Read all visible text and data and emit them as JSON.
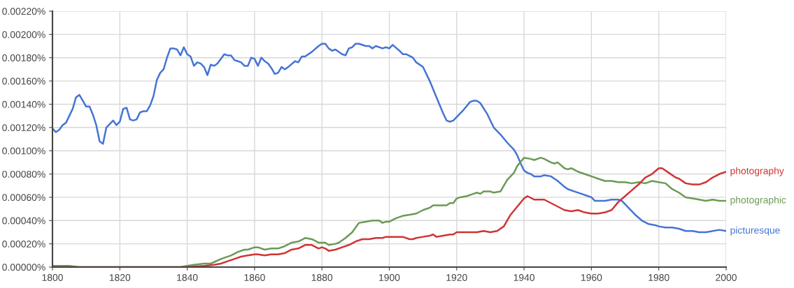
{
  "chart_data": {
    "type": "line",
    "xlim": [
      1800,
      2000
    ],
    "xticks": [
      1800,
      1820,
      1840,
      1860,
      1880,
      1900,
      1920,
      1940,
      1960,
      1980,
      2000
    ],
    "ylim": [
      0,
      0.0022
    ],
    "yticks": [
      {
        "value": 0,
        "label": "0.00000%"
      },
      {
        "value": 0.0002,
        "label": "0.00020%"
      },
      {
        "value": 0.0004,
        "label": "0.00040%"
      },
      {
        "value": 0.0006,
        "label": "0.00060%"
      },
      {
        "value": 0.0008,
        "label": "0.00080%"
      },
      {
        "value": 0.001,
        "label": "0.00100%"
      },
      {
        "value": 0.0012,
        "label": "0.00120%"
      },
      {
        "value": 0.0014,
        "label": "0.00140%"
      },
      {
        "value": 0.0016,
        "label": "0.00160%"
      },
      {
        "value": 0.0018,
        "label": "0.00180%"
      },
      {
        "value": 0.002,
        "label": "0.00200%"
      },
      {
        "value": 0.0022,
        "label": "0.00220%"
      }
    ],
    "grid": true,
    "legend": false,
    "marker": "none",
    "line_style": "solid",
    "series": [
      {
        "name": "picturesque",
        "color": "#4574d4",
        "x": [
          1800,
          1801,
          1802,
          1803,
          1804,
          1805,
          1806,
          1807,
          1808,
          1809,
          1810,
          1811,
          1812,
          1813,
          1814,
          1815,
          1816,
          1817,
          1818,
          1819,
          1820,
          1821,
          1822,
          1823,
          1824,
          1825,
          1826,
          1827,
          1828,
          1829,
          1830,
          1831,
          1832,
          1833,
          1834,
          1835,
          1836,
          1837,
          1838,
          1839,
          1840,
          1841,
          1842,
          1843,
          1844,
          1845,
          1846,
          1847,
          1848,
          1849,
          1850,
          1851,
          1852,
          1853,
          1854,
          1855,
          1856,
          1857,
          1858,
          1859,
          1860,
          1861,
          1862,
          1863,
          1864,
          1865,
          1866,
          1867,
          1868,
          1869,
          1870,
          1872,
          1873,
          1874,
          1875,
          1877,
          1879,
          1880,
          1881,
          1882,
          1883,
          1884,
          1886,
          1887,
          1888,
          1889,
          1890,
          1891,
          1893,
          1894,
          1895,
          1896,
          1898,
          1899,
          1900,
          1901,
          1903,
          1904,
          1905,
          1907,
          1908,
          1910,
          1912,
          1914,
          1916,
          1917,
          1918,
          1919,
          1920,
          1922,
          1924,
          1925,
          1926,
          1927,
          1929,
          1931,
          1933,
          1935,
          1937,
          1938,
          1939,
          1940,
          1941,
          1942,
          1943,
          1945,
          1946,
          1948,
          1950,
          1952,
          1953,
          1955,
          1957,
          1959,
          1960,
          1961,
          1962,
          1964,
          1966,
          1968,
          1969,
          1971,
          1973,
          1975,
          1977,
          1979,
          1980,
          1982,
          1984,
          1986,
          1988,
          1990,
          1992,
          1994,
          1996,
          1998,
          2000
        ],
        "values": [
          0.00119,
          0.00116,
          0.00118,
          0.00122,
          0.00124,
          0.0013,
          0.00136,
          0.00146,
          0.00148,
          0.00143,
          0.00138,
          0.00138,
          0.00131,
          0.00122,
          0.00108,
          0.00106,
          0.0012,
          0.00123,
          0.00126,
          0.00122,
          0.00125,
          0.00136,
          0.00137,
          0.00127,
          0.00126,
          0.00127,
          0.00133,
          0.00134,
          0.00134,
          0.00139,
          0.00147,
          0.00161,
          0.00167,
          0.0017,
          0.0018,
          0.00188,
          0.00188,
          0.00187,
          0.00182,
          0.00189,
          0.00183,
          0.00181,
          0.00173,
          0.00176,
          0.00175,
          0.00172,
          0.00165,
          0.00174,
          0.00173,
          0.00175,
          0.00179,
          0.00183,
          0.00182,
          0.00182,
          0.00178,
          0.00177,
          0.00176,
          0.00173,
          0.00173,
          0.0018,
          0.00179,
          0.00173,
          0.0018,
          0.00177,
          0.00175,
          0.00171,
          0.00166,
          0.00167,
          0.00172,
          0.0017,
          0.00172,
          0.00177,
          0.00176,
          0.00181,
          0.00181,
          0.00185,
          0.0019,
          0.00192,
          0.00192,
          0.00188,
          0.00186,
          0.00187,
          0.00183,
          0.00182,
          0.00188,
          0.00189,
          0.00192,
          0.00192,
          0.0019,
          0.0019,
          0.00188,
          0.0019,
          0.00188,
          0.00189,
          0.00188,
          0.00191,
          0.00186,
          0.00183,
          0.00183,
          0.0018,
          0.00176,
          0.00172,
          0.0016,
          0.00146,
          0.00132,
          0.00126,
          0.00125,
          0.00126,
          0.00129,
          0.00135,
          0.00142,
          0.00143,
          0.00143,
          0.00141,
          0.00132,
          0.0012,
          0.00114,
          0.00107,
          0.00101,
          0.00096,
          0.00089,
          0.00083,
          0.00081,
          0.0008,
          0.00078,
          0.00078,
          0.00079,
          0.00078,
          0.00074,
          0.00069,
          0.00067,
          0.00065,
          0.00063,
          0.00061,
          0.0006,
          0.00057,
          0.00057,
          0.00057,
          0.00058,
          0.00058,
          0.00057,
          0.00051,
          0.00045,
          0.0004,
          0.00037,
          0.00036,
          0.00035,
          0.00034,
          0.00034,
          0.00033,
          0.00031,
          0.00031,
          0.0003,
          0.0003,
          0.00031,
          0.00032,
          0.00031
        ]
      },
      {
        "name": "photographic",
        "color": "#6b9a56",
        "x": [
          1800,
          1805,
          1808,
          1830,
          1835,
          1838,
          1840,
          1842,
          1845,
          1847,
          1850,
          1853,
          1855,
          1857,
          1858,
          1860,
          1861,
          1863,
          1865,
          1867,
          1869,
          1871,
          1873,
          1875,
          1877,
          1879,
          1880,
          1881,
          1882,
          1884,
          1885,
          1887,
          1889,
          1890,
          1891,
          1893,
          1895,
          1897,
          1898,
          1899,
          1900,
          1902,
          1904,
          1906,
          1908,
          1910,
          1912,
          1913,
          1915,
          1917,
          1918,
          1919,
          1920,
          1921,
          1923,
          1925,
          1926,
          1927,
          1928,
          1930,
          1931,
          1933,
          1935,
          1937,
          1938,
          1940,
          1942,
          1943,
          1945,
          1946,
          1948,
          1949,
          1950,
          1952,
          1953,
          1954,
          1956,
          1958,
          1960,
          1962,
          1964,
          1966,
          1968,
          1970,
          1972,
          1974,
          1976,
          1978,
          1980,
          1982,
          1984,
          1986,
          1988,
          1990,
          1992,
          1994,
          1996,
          1998,
          2000
        ],
        "values": [
          1e-05,
          1e-05,
          0,
          0,
          0,
          0,
          1e-05,
          2e-05,
          3e-05,
          3e-05,
          7e-05,
          0.0001,
          0.00013,
          0.00015,
          0.00015,
          0.00017,
          0.00017,
          0.00015,
          0.00016,
          0.00016,
          0.00018,
          0.00021,
          0.00022,
          0.00025,
          0.00024,
          0.00021,
          0.00021,
          0.00021,
          0.00019,
          0.0002,
          0.00021,
          0.00025,
          0.0003,
          0.00034,
          0.00038,
          0.00039,
          0.0004,
          0.0004,
          0.00038,
          0.00039,
          0.00039,
          0.00042,
          0.00044,
          0.00045,
          0.00046,
          0.00049,
          0.00051,
          0.00053,
          0.00053,
          0.00053,
          0.00055,
          0.00055,
          0.00059,
          0.0006,
          0.00061,
          0.00063,
          0.00064,
          0.00063,
          0.00065,
          0.00065,
          0.00064,
          0.00065,
          0.00075,
          0.00081,
          0.00087,
          0.00094,
          0.00093,
          0.00092,
          0.00094,
          0.00093,
          0.0009,
          0.00089,
          0.0009,
          0.00085,
          0.00084,
          0.00085,
          0.00082,
          0.0008,
          0.00078,
          0.00076,
          0.00074,
          0.00074,
          0.00073,
          0.00073,
          0.00072,
          0.00073,
          0.00072,
          0.00074,
          0.00073,
          0.00072,
          0.00067,
          0.00064,
          0.0006,
          0.00059,
          0.00058,
          0.00057,
          0.00058,
          0.00057,
          0.00057
        ]
      },
      {
        "name": "photography",
        "color": "#d03434",
        "x": [
          1800,
          1838,
          1840,
          1845,
          1848,
          1850,
          1852,
          1854,
          1856,
          1858,
          1860,
          1861,
          1863,
          1865,
          1867,
          1869,
          1871,
          1873,
          1875,
          1877,
          1879,
          1880,
          1881,
          1882,
          1884,
          1886,
          1888,
          1890,
          1892,
          1894,
          1896,
          1898,
          1899,
          1902,
          1904,
          1906,
          1907,
          1908,
          1910,
          1912,
          1913,
          1914,
          1916,
          1918,
          1919,
          1920,
          1922,
          1924,
          1926,
          1928,
          1930,
          1932,
          1934,
          1936,
          1938,
          1940,
          1941,
          1943,
          1946,
          1948,
          1950,
          1952,
          1954,
          1956,
          1958,
          1960,
          1962,
          1964,
          1966,
          1968,
          1970,
          1972,
          1974,
          1976,
          1978,
          1980,
          1981,
          1983,
          1985,
          1986,
          1988,
          1990,
          1992,
          1994,
          1996,
          1998,
          2000
        ],
        "values": [
          0,
          0,
          0,
          1e-05,
          2e-05,
          3e-05,
          5e-05,
          7e-05,
          9e-05,
          0.0001,
          0.00011,
          0.00011,
          0.0001,
          0.00011,
          0.00011,
          0.00012,
          0.00015,
          0.00016,
          0.00019,
          0.00019,
          0.00016,
          0.00017,
          0.00016,
          0.00014,
          0.00015,
          0.00017,
          0.00019,
          0.00022,
          0.00024,
          0.00024,
          0.00025,
          0.00025,
          0.00026,
          0.00026,
          0.00026,
          0.00024,
          0.00024,
          0.00025,
          0.00026,
          0.00027,
          0.00028,
          0.00026,
          0.00027,
          0.00028,
          0.00028,
          0.0003,
          0.0003,
          0.0003,
          0.0003,
          0.00031,
          0.0003,
          0.00031,
          0.00035,
          0.00045,
          0.00052,
          0.00059,
          0.00061,
          0.00058,
          0.00058,
          0.00055,
          0.00052,
          0.00049,
          0.00048,
          0.00049,
          0.00047,
          0.00046,
          0.00046,
          0.00047,
          0.00049,
          0.00056,
          0.00061,
          0.00066,
          0.00071,
          0.00077,
          0.0008,
          0.00085,
          0.00085,
          0.00081,
          0.00077,
          0.00076,
          0.00072,
          0.00071,
          0.00071,
          0.00073,
          0.00077,
          0.0008,
          0.00082
        ]
      }
    ]
  }
}
